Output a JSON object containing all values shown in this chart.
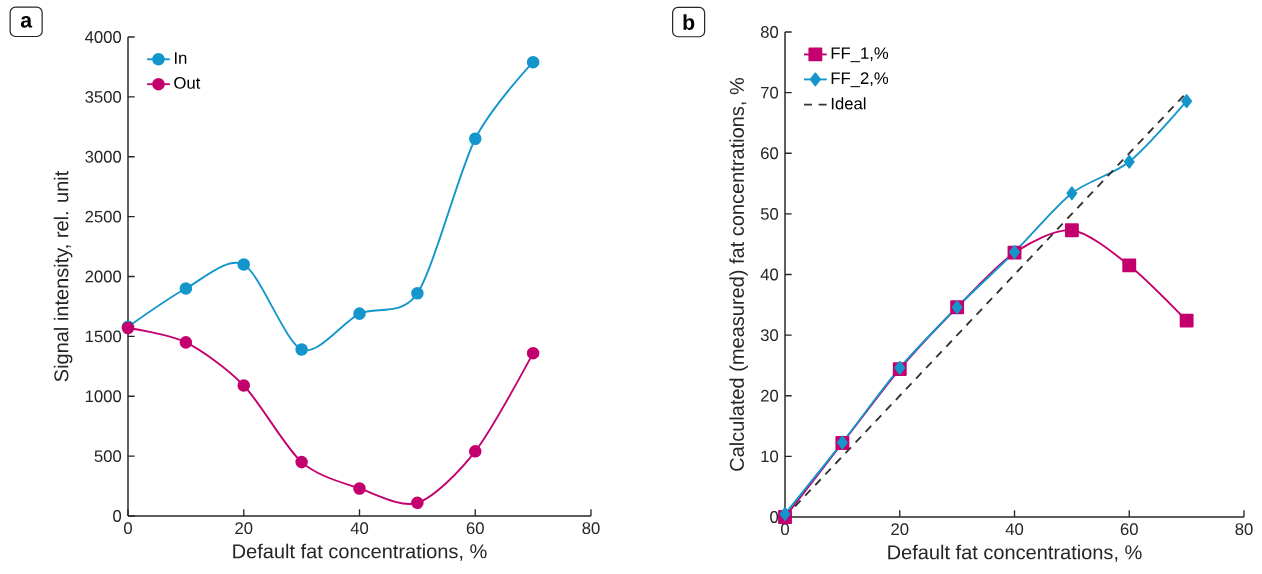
{
  "chart_data": [
    {
      "type": "line",
      "title": "a",
      "xlabel": "Default fat concentrations, %",
      "ylabel": "Signal intensity, rel. unit",
      "x": [
        0,
        10,
        20,
        30,
        40,
        50,
        60,
        70
      ],
      "xlim": [
        0,
        80
      ],
      "ylim": [
        0,
        4000
      ],
      "xticks": [
        0,
        20,
        40,
        60,
        80
      ],
      "yticks": [
        0,
        500,
        1000,
        1500,
        2000,
        2500,
        3000,
        3500,
        4000
      ],
      "grid": false,
      "legend": "top left",
      "marker": "circle",
      "line_style": "solid",
      "series": [
        {
          "name": "In",
          "color": "#1496cc",
          "values": [
            1580,
            1900,
            2100,
            1390,
            1690,
            1860,
            3150,
            3790
          ]
        },
        {
          "name": "Out",
          "color": "#c4006e",
          "values": [
            1570,
            1450,
            1090,
            450,
            230,
            110,
            540,
            1360
          ]
        }
      ]
    },
    {
      "type": "line",
      "title": "b",
      "xlabel": "Default fat concentrations, %",
      "ylabel": "Calculated (measured) fat concentrations, %",
      "x": [
        0,
        10,
        20,
        30,
        40,
        50,
        60,
        70
      ],
      "xlim": [
        0,
        80
      ],
      "ylim": [
        0,
        80
      ],
      "xticks": [
        0,
        20,
        40,
        60,
        80
      ],
      "yticks": [
        0,
        10,
        20,
        30,
        40,
        50,
        60,
        70,
        80
      ],
      "grid": false,
      "legend": "top left",
      "line_style": "solid",
      "series": [
        {
          "name": "FF_1,%",
          "color": "#c4006e",
          "marker": "square",
          "values": [
            0,
            12.2,
            24.4,
            34.6,
            43.6,
            47.3,
            41.5,
            32.4
          ]
        },
        {
          "name": "FF_2,%",
          "color": "#1496cc",
          "marker": "diamond",
          "values": [
            0.5,
            12.3,
            24.6,
            34.6,
            43.7,
            53.4,
            58.6,
            68.6
          ]
        },
        {
          "name": "Ideal",
          "color": "#333333",
          "marker": "none",
          "line_style": "dashed",
          "x": [
            0,
            70
          ],
          "values": [
            0,
            70
          ]
        }
      ]
    }
  ]
}
